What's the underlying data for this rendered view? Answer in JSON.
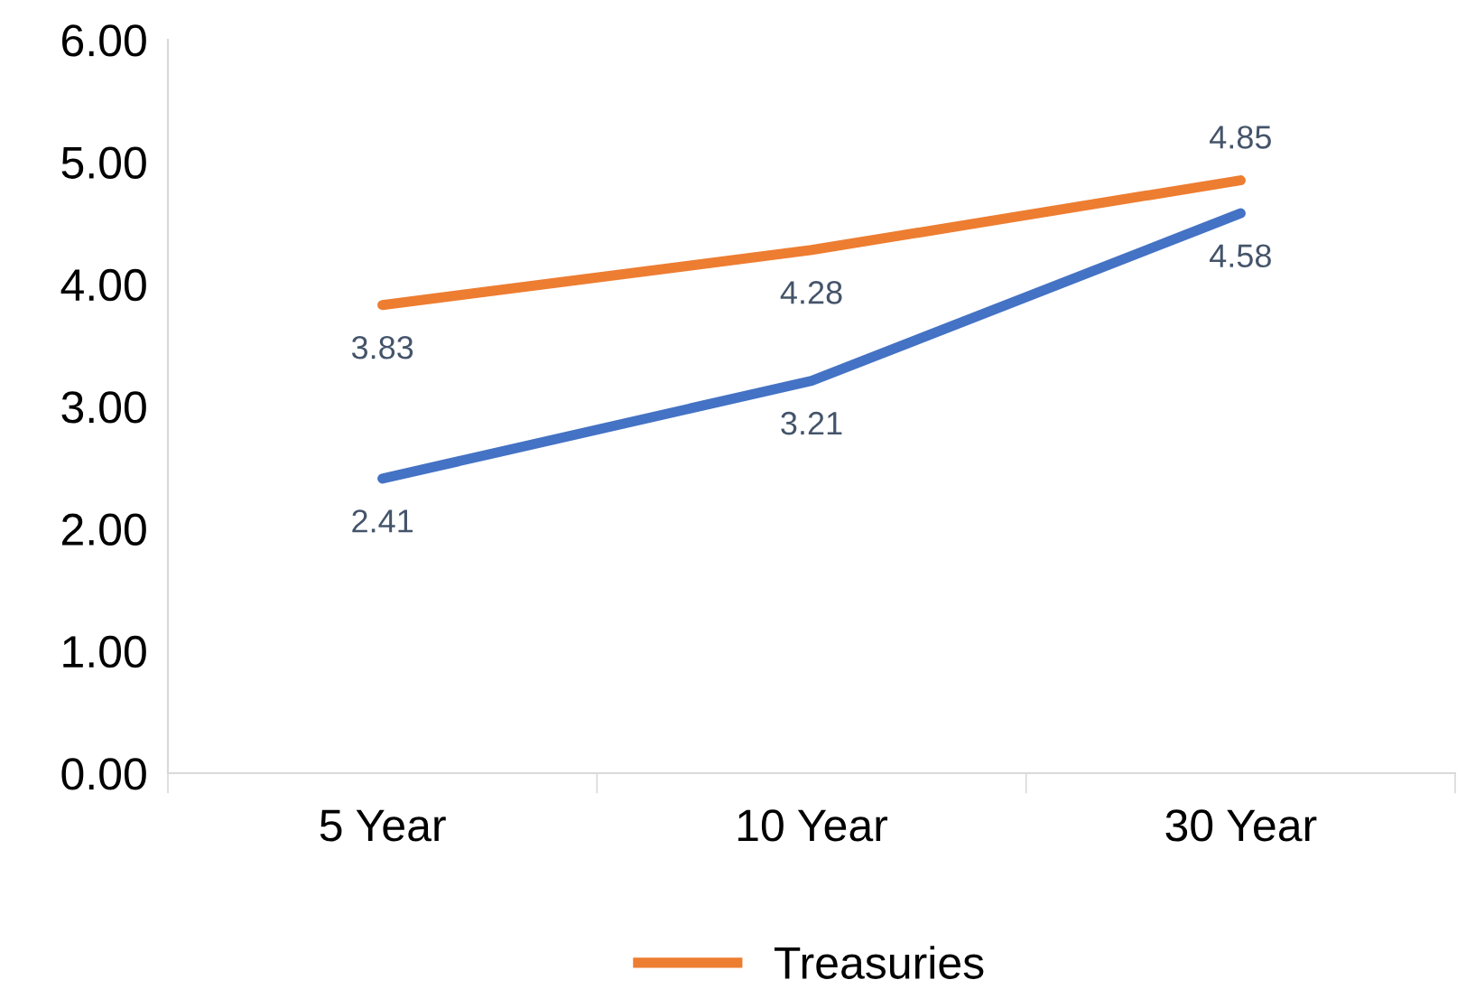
{
  "chart_data": {
    "type": "line",
    "categories": [
      "5 Year",
      "10 Year",
      "30 Year"
    ],
    "series": [
      {
        "color": "#4472c4",
        "values": [
          2.41,
          3.21,
          4.58
        ]
      },
      {
        "name": "Treasuries",
        "color": "#ed7d31",
        "values": [
          3.83,
          4.28,
          4.85
        ]
      }
    ],
    "ylim": [
      0,
      6
    ],
    "yticks": [
      {
        "value": 0,
        "label": "0.00"
      },
      {
        "value": 1,
        "label": "1.00"
      },
      {
        "value": 2,
        "label": "2.00"
      },
      {
        "value": 3,
        "label": "3.00"
      },
      {
        "value": 4,
        "label": "4.00"
      },
      {
        "value": 5,
        "label": "5.00"
      },
      {
        "value": 6,
        "label": "6.00"
      }
    ],
    "data_labels": true,
    "grid": false,
    "legend": "bottom",
    "marker": "none",
    "line_style": "solid"
  }
}
